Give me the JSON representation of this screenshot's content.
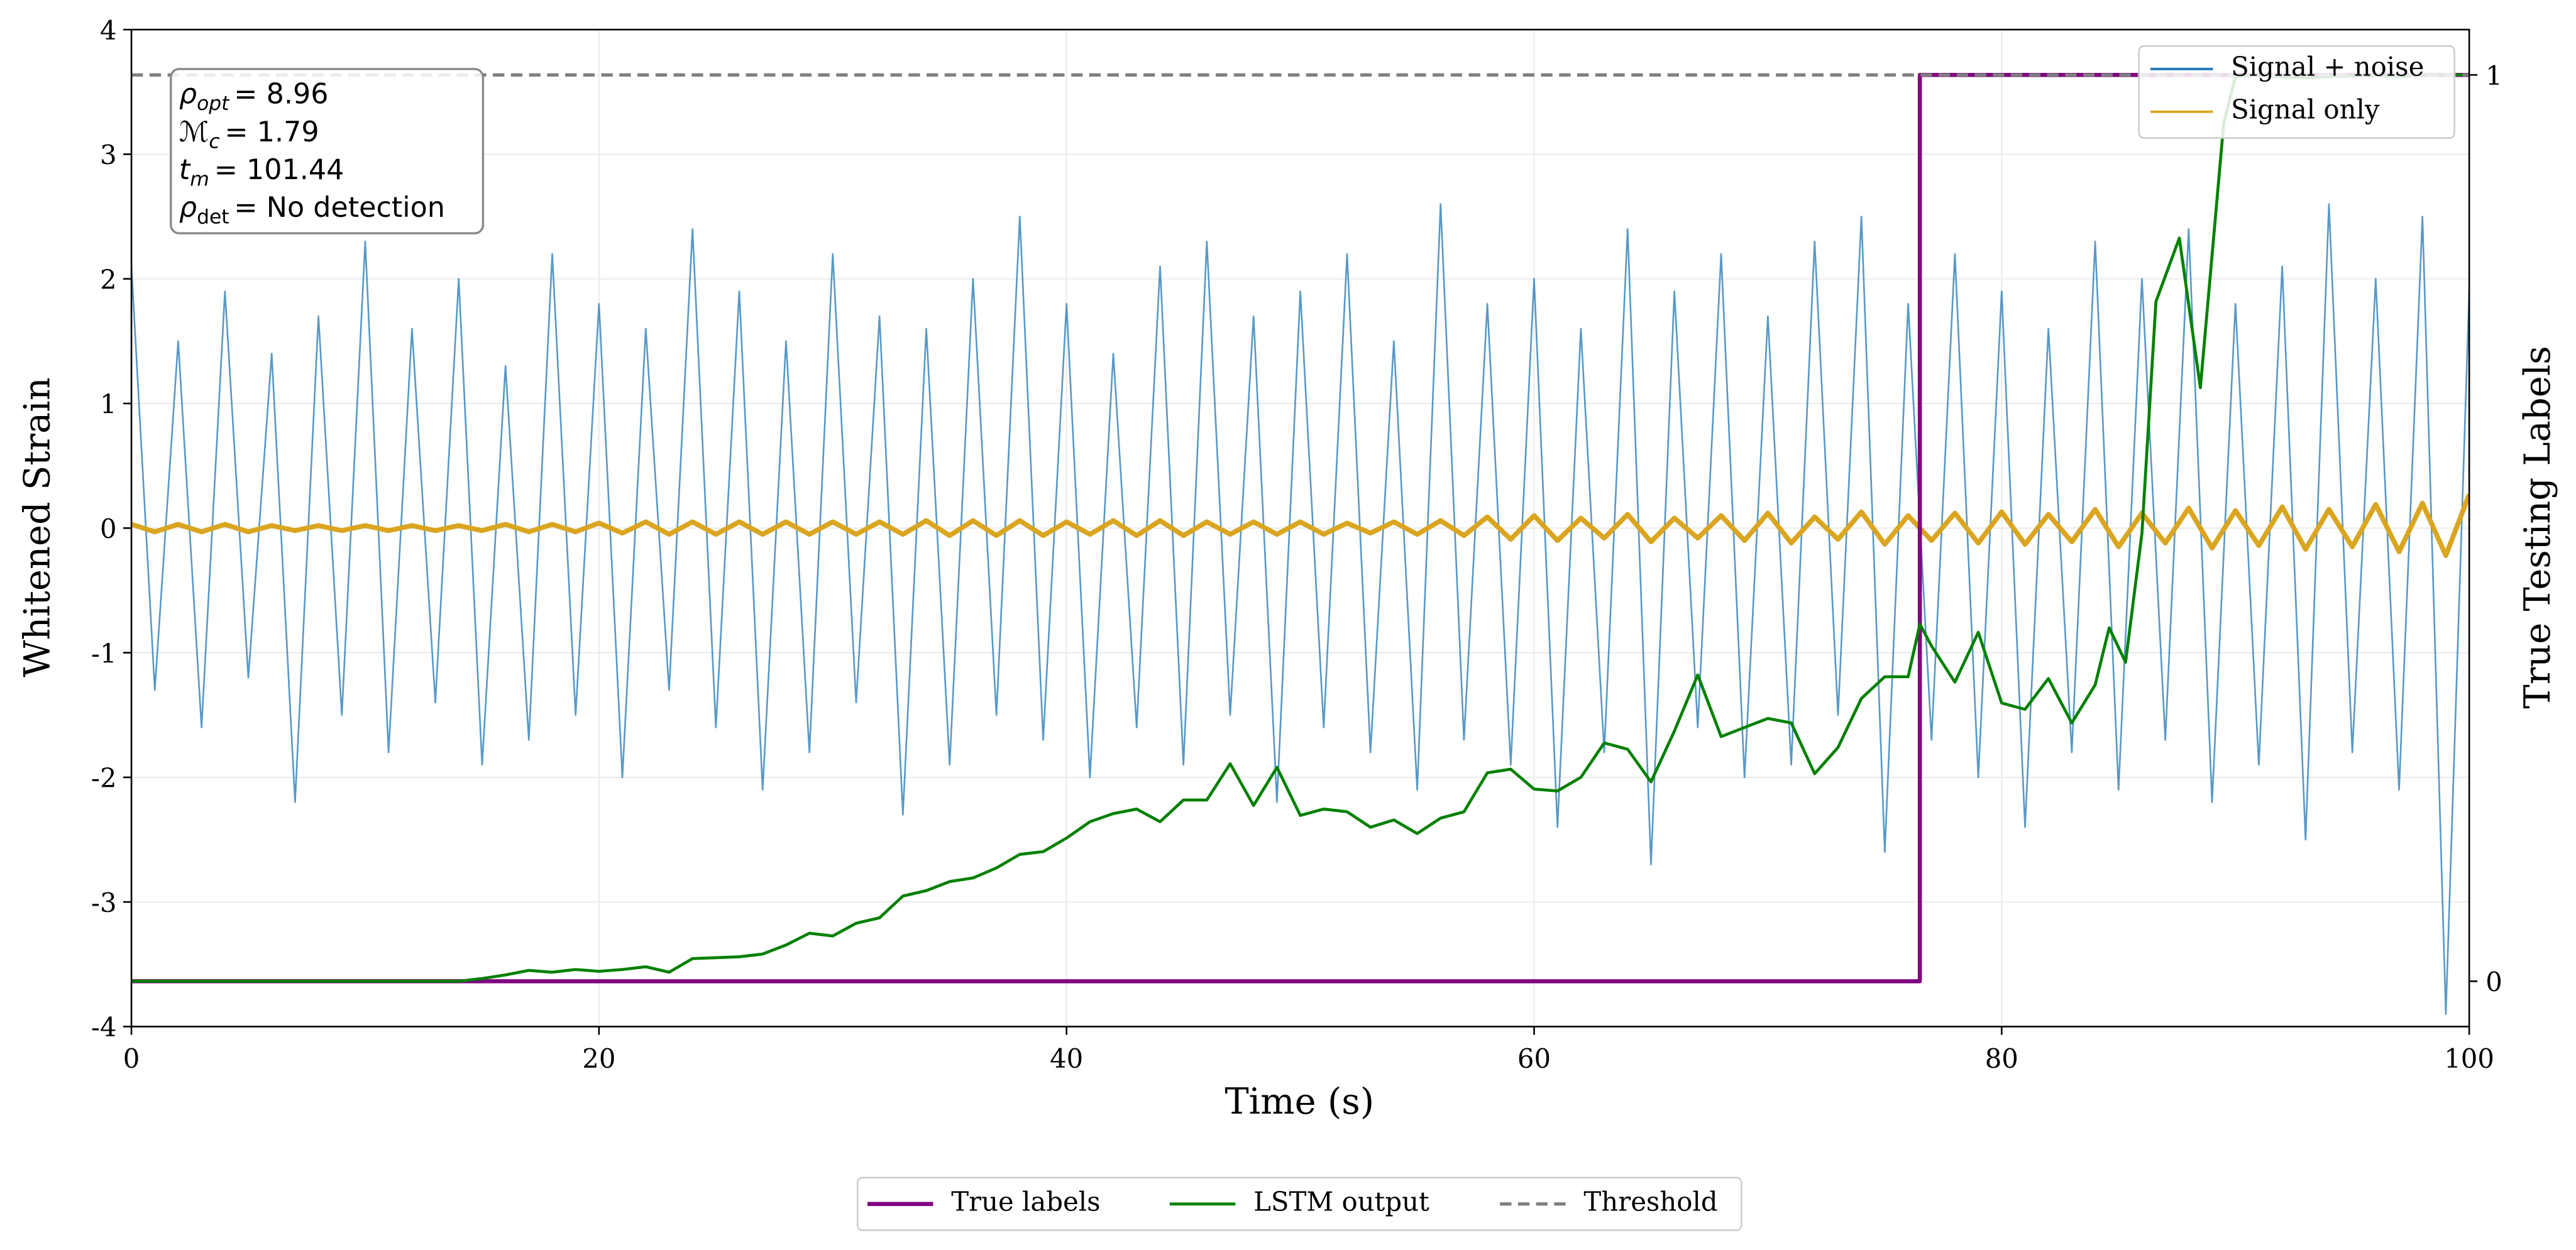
{
  "chart_data": {
    "type": "line",
    "xlabel": "Time (s)",
    "ylabel": "Whitened Strain",
    "y2label": "True Testing Labels",
    "xlim": [
      0,
      100
    ],
    "xticks": [
      0,
      20,
      40,
      60,
      80,
      100
    ],
    "ylim": [
      -4,
      4
    ],
    "yticks": [
      -4,
      -3,
      -2,
      -1,
      0,
      1,
      2,
      3,
      4
    ],
    "y2lim": [
      -0.05,
      1.05
    ],
    "y2ticks": [
      0,
      1
    ],
    "grid": true,
    "legend": "upper right",
    "legend2": "lower center",
    "annotations": [
      [
        "ρ",
        "opt",
        "= 8.96"
      ],
      [
        "ℳ",
        "c",
        "= 1.79"
      ],
      [
        "t",
        "m",
        "= 101.44"
      ],
      [
        "ρ",
        "det",
        "= No detection"
      ]
    ],
    "series": [
      {
        "name": "Signal + noise",
        "color": "#1f77b4",
        "style": "solid",
        "x": [
          0,
          1,
          2,
          3,
          4,
          5,
          6,
          7,
          8,
          9,
          10,
          11,
          12,
          13,
          14,
          15,
          16,
          17,
          18,
          19,
          20,
          21,
          22,
          23,
          24,
          25,
          26,
          27,
          28,
          29,
          30,
          31,
          32,
          33,
          34,
          35,
          36,
          37,
          38,
          39,
          40,
          41,
          42,
          43,
          44,
          45,
          46,
          47,
          48,
          49,
          50,
          51,
          52,
          53,
          54,
          55,
          56,
          57,
          58,
          59,
          60,
          61,
          62,
          63,
          64,
          65,
          66,
          67,
          68,
          69,
          70,
          71,
          72,
          73,
          74,
          75,
          76,
          77,
          78,
          79,
          80,
          81,
          82,
          83,
          84,
          85,
          86,
          87,
          88,
          89,
          90,
          91,
          92,
          93,
          94,
          95,
          96,
          97,
          98,
          99,
          100
        ],
        "values": [
          2.1,
          -1.3,
          1.5,
          -1.6,
          1.9,
          -1.2,
          1.4,
          -2.2,
          1.7,
          -1.5,
          2.3,
          -1.8,
          1.6,
          -1.4,
          2.0,
          -1.9,
          1.3,
          -1.7,
          2.2,
          -1.5,
          1.8,
          -2.0,
          1.6,
          -1.3,
          2.4,
          -1.6,
          1.9,
          -2.1,
          1.5,
          -1.8,
          2.2,
          -1.4,
          1.7,
          -2.3,
          1.6,
          -1.9,
          2.0,
          -1.5,
          2.5,
          -1.7,
          1.8,
          -2.0,
          1.4,
          -1.6,
          2.1,
          -1.9,
          2.3,
          -1.5,
          1.7,
          -2.2,
          1.9,
          -1.6,
          2.2,
          -1.8,
          1.5,
          -2.1,
          2.6,
          -1.7,
          1.8,
          -1.9,
          2.0,
          -2.4,
          1.6,
          -1.8,
          2.4,
          -2.7,
          1.9,
          -1.6,
          2.2,
          -2.0,
          1.7,
          -1.9,
          2.3,
          -1.5,
          2.5,
          -2.6,
          1.8,
          -1.7,
          2.2,
          -2.0,
          1.9,
          -2.4,
          1.6,
          -1.8,
          2.3,
          -2.1,
          2.0,
          -1.7,
          2.4,
          -2.2,
          1.8,
          -1.9,
          2.1,
          -2.5,
          2.6,
          -1.8,
          2.0,
          -2.1,
          2.5,
          -3.9,
          1.9
        ]
      },
      {
        "name": "Signal only",
        "color": "#daa520",
        "style": "solid",
        "x": [
          0,
          1,
          2,
          3,
          4,
          5,
          6,
          7,
          8,
          9,
          10,
          11,
          12,
          13,
          14,
          15,
          16,
          17,
          18,
          19,
          20,
          21,
          22,
          23,
          24,
          25,
          26,
          27,
          28,
          29,
          30,
          31,
          32,
          33,
          34,
          35,
          36,
          37,
          38,
          39,
          40,
          41,
          42,
          43,
          44,
          45,
          46,
          47,
          48,
          49,
          50,
          51,
          52,
          53,
          54,
          55,
          56,
          57,
          58,
          59,
          60,
          61,
          62,
          63,
          64,
          65,
          66,
          67,
          68,
          69,
          70,
          71,
          72,
          73,
          74,
          75,
          76,
          77,
          78,
          79,
          80,
          81,
          82,
          83,
          84,
          85,
          86,
          87,
          88,
          89,
          90,
          91,
          92,
          93,
          94,
          95,
          96,
          97,
          98,
          99,
          100
        ],
        "values": [
          0.03,
          -0.03,
          0.03,
          -0.03,
          0.03,
          -0.03,
          0.02,
          -0.02,
          0.02,
          -0.02,
          0.02,
          -0.02,
          0.02,
          -0.02,
          0.02,
          -0.02,
          0.03,
          -0.03,
          0.03,
          -0.03,
          0.04,
          -0.04,
          0.05,
          -0.05,
          0.05,
          -0.05,
          0.05,
          -0.05,
          0.05,
          -0.05,
          0.05,
          -0.05,
          0.05,
          -0.05,
          0.06,
          -0.06,
          0.06,
          -0.06,
          0.06,
          -0.06,
          0.05,
          -0.05,
          0.06,
          -0.06,
          0.06,
          -0.06,
          0.05,
          -0.05,
          0.05,
          -0.05,
          0.05,
          -0.05,
          0.04,
          -0.04,
          0.05,
          -0.05,
          0.06,
          -0.06,
          0.09,
          -0.09,
          0.1,
          -0.1,
          0.08,
          -0.08,
          0.11,
          -0.11,
          0.08,
          -0.08,
          0.1,
          -0.1,
          0.12,
          -0.12,
          0.09,
          -0.09,
          0.13,
          -0.13,
          0.1,
          -0.1,
          0.12,
          -0.12,
          0.13,
          -0.13,
          0.11,
          -0.11,
          0.15,
          -0.15,
          0.12,
          -0.12,
          0.16,
          -0.16,
          0.14,
          -0.14,
          0.17,
          -0.17,
          0.15,
          -0.15,
          0.19,
          -0.19,
          0.2,
          -0.22,
          0.27
        ]
      },
      {
        "name": "True labels",
        "color": "#800080",
        "style": "solid",
        "axis": "y2",
        "x": [
          0,
          76.5,
          76.5,
          100
        ],
        "values": [
          0,
          0,
          1,
          1
        ]
      },
      {
        "name": "LSTM output",
        "color": "#008000",
        "style": "solid",
        "axis": "y2",
        "x": [
          0,
          14,
          15,
          16,
          17,
          18,
          19,
          20,
          21,
          22,
          23,
          24,
          25,
          26,
          27,
          28,
          29,
          30,
          31,
          32,
          33,
          34,
          35,
          36,
          37,
          38,
          39,
          40,
          41,
          42,
          43,
          44,
          45,
          46,
          47,
          48,
          49,
          50,
          51,
          52,
          53,
          54,
          55,
          56,
          57,
          58,
          59,
          60,
          61,
          62,
          63,
          64,
          65,
          66,
          67,
          68,
          69,
          70,
          71,
          72,
          73,
          74,
          75,
          76,
          76.5,
          77,
          78,
          79,
          80,
          81,
          82,
          83,
          84,
          84.6,
          85.3,
          86,
          86.6,
          87.6,
          88.5,
          89.5,
          90,
          91,
          92,
          93,
          94,
          95,
          96,
          97,
          98,
          99,
          100
        ],
        "values": [
          0,
          0,
          0.003,
          0.007,
          0.012,
          0.01,
          0.013,
          0.011,
          0.013,
          0.016,
          0.01,
          0.025,
          0.026,
          0.027,
          0.03,
          0.04,
          0.053,
          0.05,
          0.064,
          0.07,
          0.094,
          0.1,
          0.11,
          0.114,
          0.125,
          0.14,
          0.143,
          0.158,
          0.176,
          0.185,
          0.19,
          0.176,
          0.2,
          0.2,
          0.24,
          0.194,
          0.236,
          0.183,
          0.19,
          0.187,
          0.17,
          0.178,
          0.163,
          0.18,
          0.187,
          0.23,
          0.234,
          0.212,
          0.21,
          0.225,
          0.263,
          0.256,
          0.22,
          0.276,
          0.338,
          0.27,
          0.28,
          0.29,
          0.285,
          0.229,
          0.258,
          0.312,
          0.336,
          0.336,
          0.394,
          0.37,
          0.33,
          0.385,
          0.307,
          0.3,
          0.334,
          0.285,
          0.327,
          0.39,
          0.352,
          0.494,
          0.75,
          0.82,
          0.655,
          0.947,
          0.998,
          1.0,
          0.998,
          0.997,
          0.998,
          0.999,
          0.999,
          0.998,
          1.0,
          1.0,
          1.0
        ]
      },
      {
        "name": "Threshold",
        "color": "#7f7f7f",
        "style": "dashed",
        "axis": "y2",
        "x": [
          0,
          100
        ],
        "values": [
          1,
          1
        ]
      }
    ]
  }
}
